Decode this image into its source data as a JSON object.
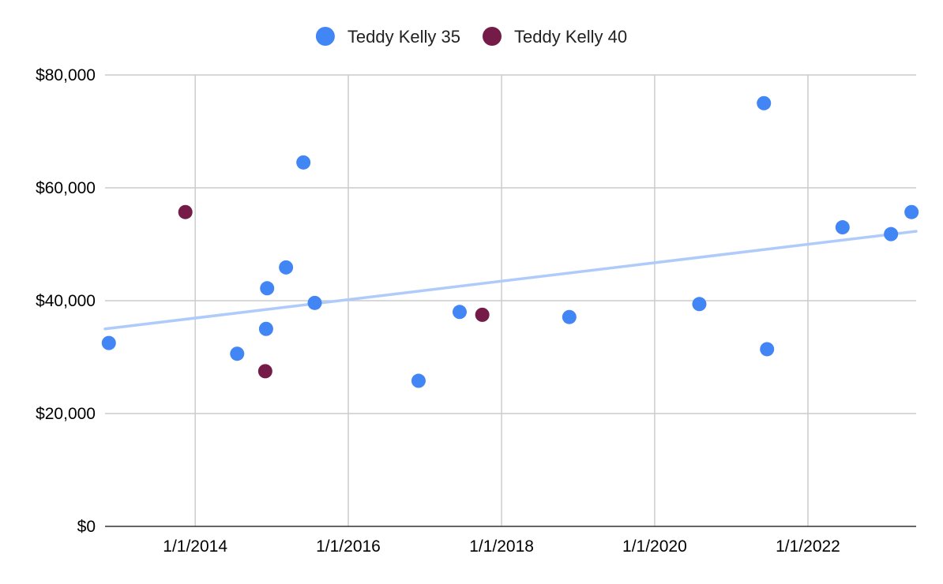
{
  "chart_data": {
    "type": "scatter",
    "title": "",
    "xlabel": "",
    "ylabel": "",
    "x_axis_kind": "date",
    "xlim": [
      "2012-10-28",
      "2023-06-01"
    ],
    "ylim": [
      0,
      80000
    ],
    "x_ticks": [
      {
        "value": "2014-01-01",
        "label": "1/1/2014"
      },
      {
        "value": "2016-01-01",
        "label": "1/1/2016"
      },
      {
        "value": "2018-01-01",
        "label": "1/1/2018"
      },
      {
        "value": "2020-01-01",
        "label": "1/1/2020"
      },
      {
        "value": "2022-01-01",
        "label": "1/1/2022"
      }
    ],
    "y_ticks": [
      {
        "value": 0,
        "label": "$0"
      },
      {
        "value": 20000,
        "label": "$20,000"
      },
      {
        "value": 40000,
        "label": "$40,000"
      },
      {
        "value": 60000,
        "label": "$60,000"
      },
      {
        "value": 80000,
        "label": "$80,000"
      }
    ],
    "grid": true,
    "legend_position": "top",
    "series": [
      {
        "name": "Teddy Kelly 35",
        "color": "#4285f4",
        "points": [
          {
            "x": "2012-11-15",
            "y": 32500
          },
          {
            "x": "2014-07-20",
            "y": 30600
          },
          {
            "x": "2014-12-05",
            "y": 35000
          },
          {
            "x": "2014-12-10",
            "y": 42200
          },
          {
            "x": "2015-03-10",
            "y": 45900
          },
          {
            "x": "2015-06-01",
            "y": 64500
          },
          {
            "x": "2015-07-25",
            "y": 39600
          },
          {
            "x": "2016-12-01",
            "y": 25800
          },
          {
            "x": "2017-06-15",
            "y": 38000
          },
          {
            "x": "2018-11-20",
            "y": 37100
          },
          {
            "x": "2020-08-01",
            "y": 39400
          },
          {
            "x": "2021-06-05",
            "y": 75000
          },
          {
            "x": "2021-06-20",
            "y": 31400
          },
          {
            "x": "2022-06-15",
            "y": 53000
          },
          {
            "x": "2023-02-01",
            "y": 51800
          },
          {
            "x": "2023-05-10",
            "y": 55700
          }
        ]
      },
      {
        "name": "Teddy Kelly 40",
        "color": "#741b47",
        "points": [
          {
            "x": "2013-11-15",
            "y": 55700
          },
          {
            "x": "2014-12-01",
            "y": 27500
          },
          {
            "x": "2017-10-01",
            "y": 37500
          }
        ]
      }
    ],
    "trendline": {
      "series": "Teddy Kelly 35",
      "color": "#aecbfa",
      "start": {
        "x": "2012-10-28",
        "y": 35000
      },
      "end": {
        "x": "2023-06-01",
        "y": 52300
      }
    }
  }
}
